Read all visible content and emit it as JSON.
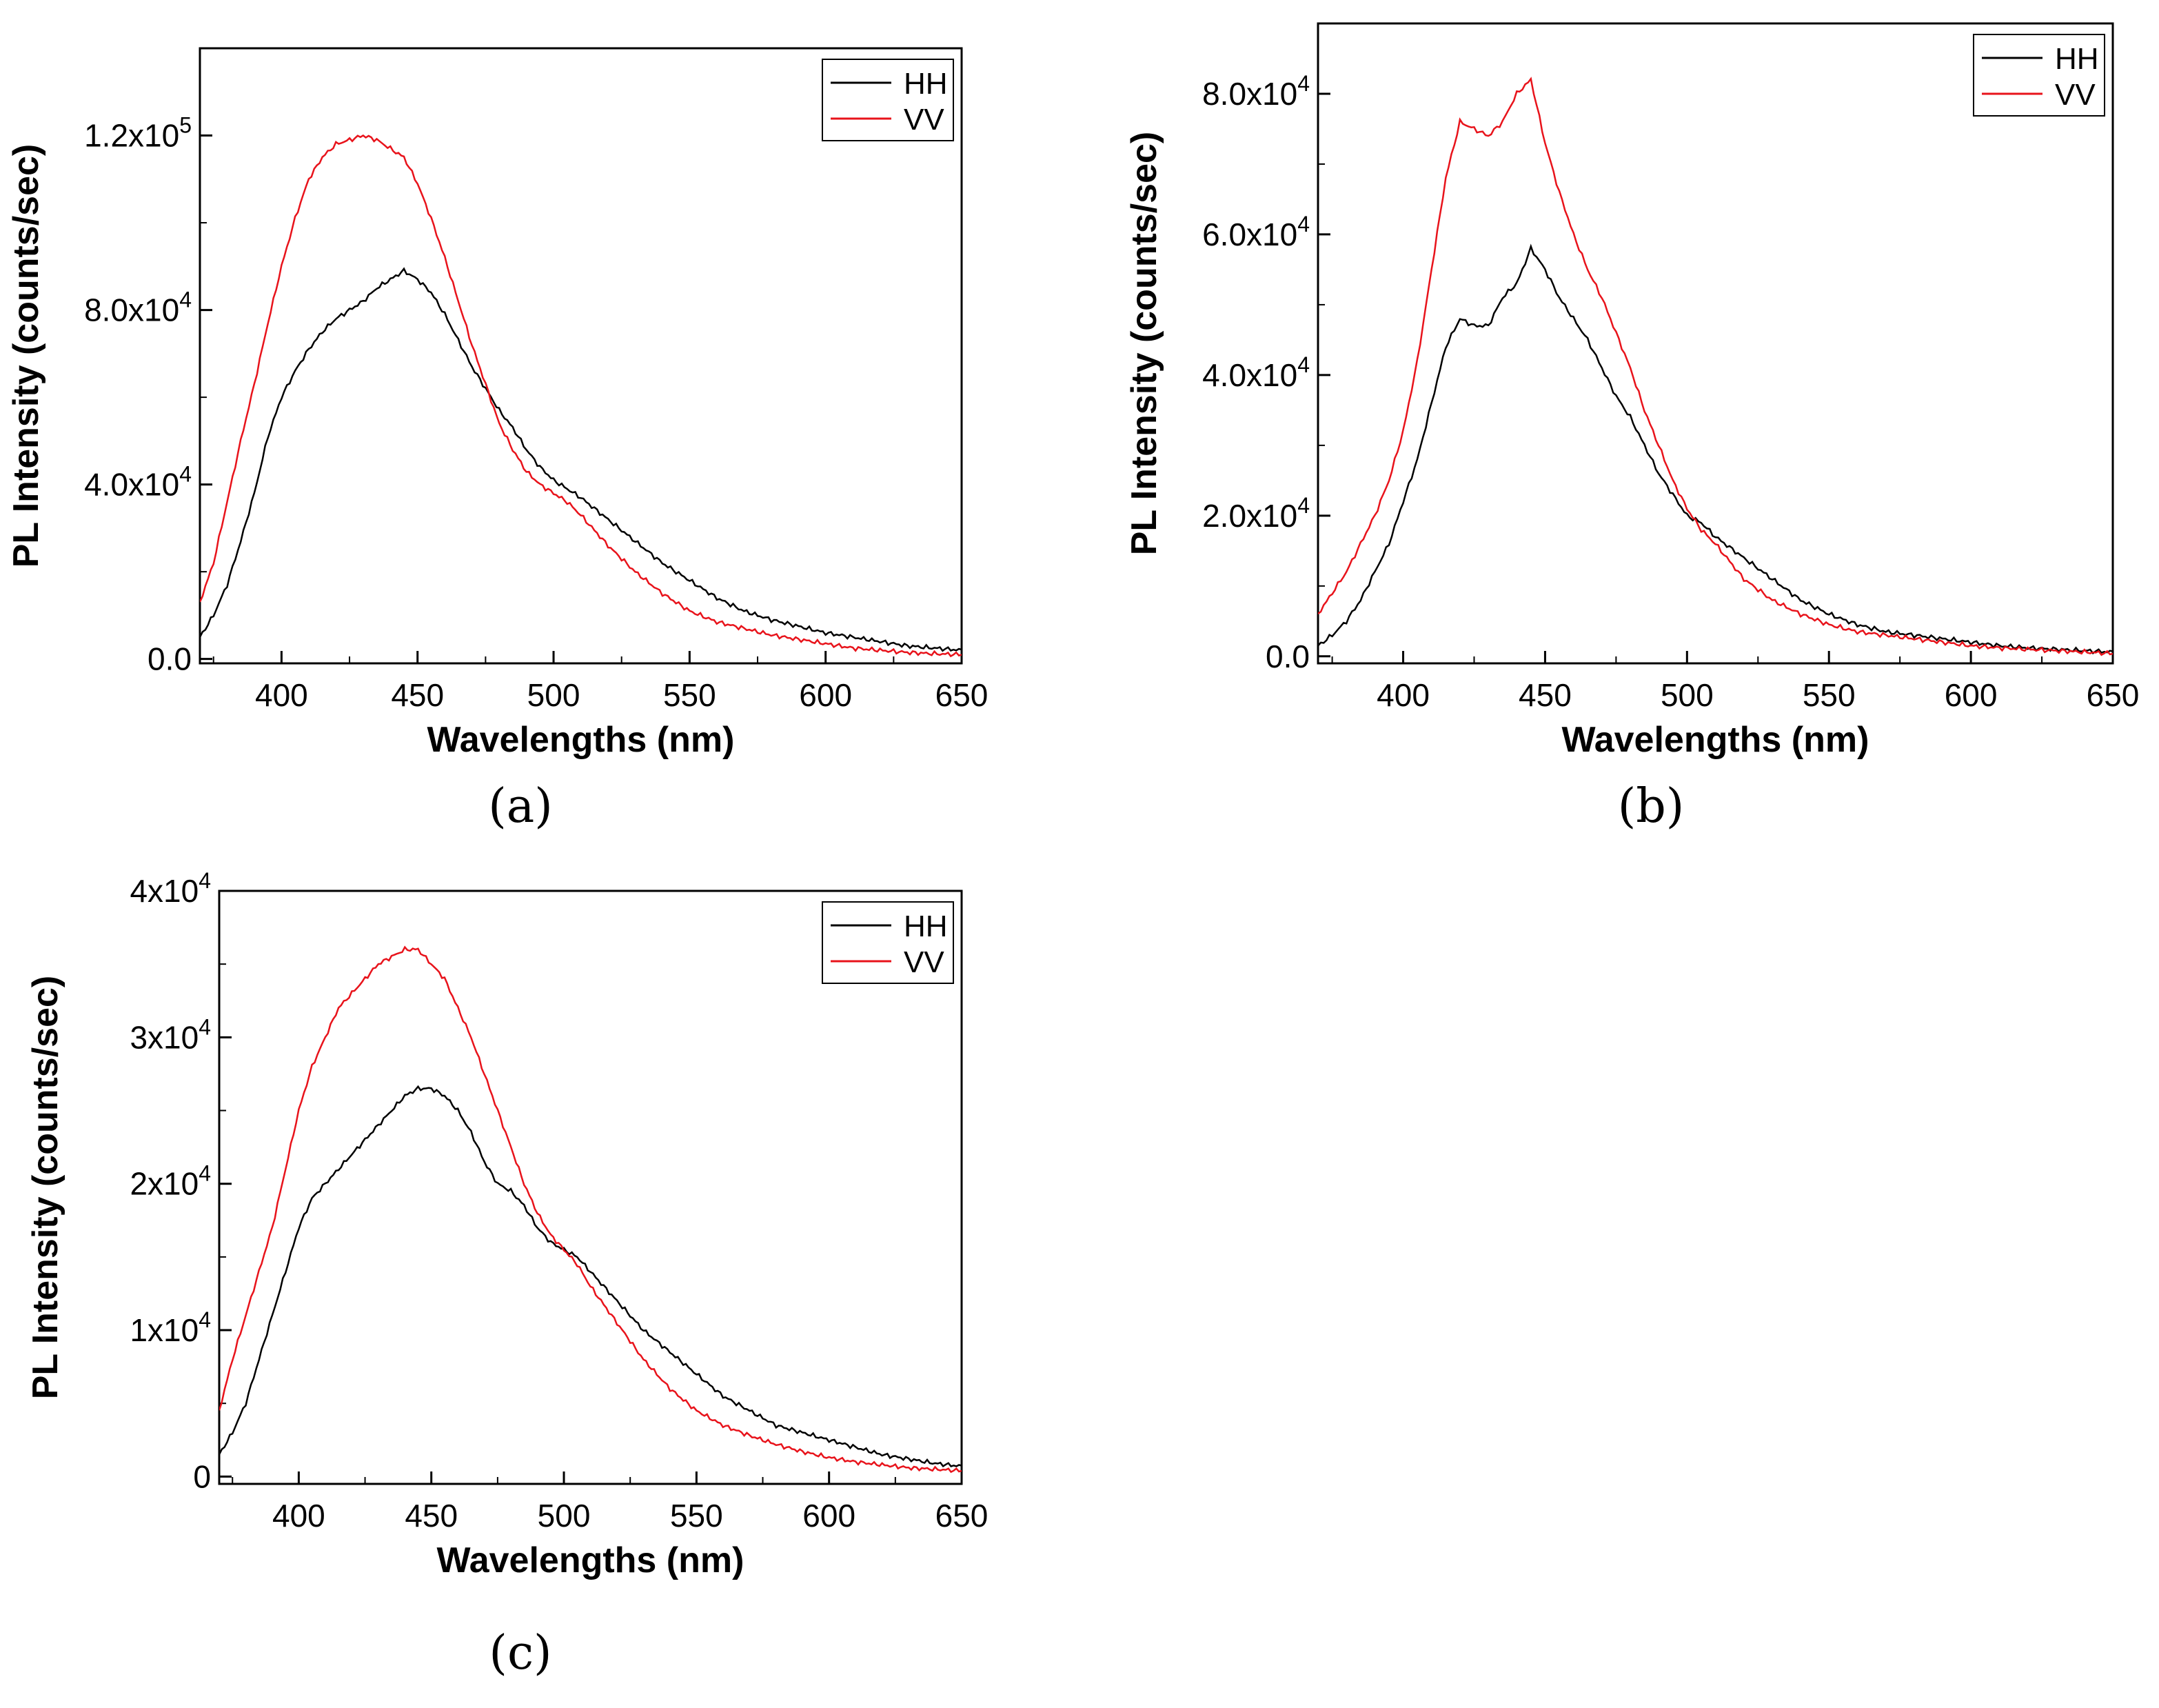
{
  "figure": {
    "panels": [
      {
        "label": "(a)",
        "xlabel": "Wavelengths (nm)",
        "ylabel": "PL Intensity (counts/sec)",
        "legend": [
          "HH",
          "VV"
        ]
      },
      {
        "label": "(b)",
        "xlabel": "Wavelengths (nm)",
        "ylabel": "PL Intensity (counts/sec)",
        "legend": [
          "HH",
          "VV"
        ]
      },
      {
        "label": "(c)",
        "xlabel": "Wavelengths (nm)",
        "ylabel": "PL Intensity (counts/sec)",
        "legend": [
          "HH",
          "VV"
        ]
      }
    ]
  },
  "colors": {
    "HH": "#000000",
    "VV": "#e8131b"
  },
  "chart_data": [
    {
      "type": "line",
      "panel": "(a)",
      "title": "",
      "xlabel": "Wavelengths (nm)",
      "ylabel": "PL Intensity (counts/sec)",
      "xlim": [
        370,
        650
      ],
      "ylim": [
        -1000,
        140000
      ],
      "xticks": [
        400,
        450,
        500,
        550,
        600,
        650
      ],
      "yticks": [
        0,
        40000,
        80000,
        120000
      ],
      "ytick_labels": [
        {
          "base": "0.0",
          "exp": ""
        },
        {
          "base": "4.0x10",
          "exp": "4"
        },
        {
          "base": "8.0x10",
          "exp": "4"
        },
        {
          "base": "1.2x10",
          "exp": "5"
        }
      ],
      "legend_position": "top-right",
      "x": [
        370,
        375,
        380,
        385,
        390,
        395,
        400,
        405,
        410,
        415,
        420,
        425,
        430,
        435,
        440,
        445,
        450,
        455,
        460,
        465,
        470,
        475,
        480,
        485,
        490,
        495,
        500,
        505,
        510,
        520,
        530,
        540,
        550,
        560,
        570,
        580,
        590,
        600,
        610,
        620,
        630,
        640,
        650
      ],
      "series": [
        {
          "name": "HH",
          "values": [
            5000,
            10000,
            17000,
            27000,
            38000,
            51000,
            60000,
            66000,
            71000,
            75000,
            78000,
            80000,
            82000,
            85000,
            87000,
            89000,
            87000,
            84000,
            79000,
            73000,
            67000,
            62000,
            57000,
            53000,
            48000,
            44000,
            41000,
            39000,
            37000,
            32000,
            27000,
            22000,
            18000,
            14000,
            11000,
            9000,
            7500,
            6000,
            5000,
            4000,
            3000,
            2500,
            2000
          ]
        },
        {
          "name": "VV",
          "values": [
            13000,
            22000,
            36000,
            50000,
            63000,
            77000,
            90000,
            101000,
            110000,
            115000,
            118000,
            119000,
            120000,
            119000,
            117000,
            115000,
            109000,
            101000,
            92000,
            82000,
            72000,
            63000,
            54000,
            48000,
            43000,
            40000,
            38000,
            36000,
            33000,
            26000,
            20000,
            15000,
            11000,
            8500,
            7000,
            5500,
            4500,
            3500,
            2500,
            2000,
            1500,
            1200,
            1000
          ]
        }
      ]
    },
    {
      "type": "line",
      "panel": "(b)",
      "title": "",
      "xlabel": "Wavelengths (nm)",
      "ylabel": "PL Intensity (counts/sec)",
      "xlim": [
        370,
        650
      ],
      "ylim": [
        -1000,
        90000
      ],
      "xticks": [
        400,
        450,
        500,
        550,
        600,
        650
      ],
      "yticks": [
        0,
        20000,
        40000,
        60000,
        80000
      ],
      "ytick_labels": [
        {
          "base": "0.0",
          "exp": ""
        },
        {
          "base": "2.0x10",
          "exp": "4"
        },
        {
          "base": "4.0x10",
          "exp": "4"
        },
        {
          "base": "6.0x10",
          "exp": "4"
        },
        {
          "base": "8.0x10",
          "exp": "4"
        }
      ],
      "legend_position": "top-right",
      "x": [
        370,
        375,
        380,
        385,
        390,
        395,
        400,
        405,
        410,
        415,
        420,
        425,
        430,
        435,
        440,
        445,
        450,
        455,
        460,
        465,
        470,
        475,
        480,
        485,
        490,
        495,
        500,
        505,
        510,
        520,
        530,
        540,
        550,
        560,
        570,
        580,
        590,
        600,
        610,
        620,
        630,
        640,
        650
      ],
      "series": [
        {
          "name": "HH",
          "values": [
            1500,
            3000,
            5000,
            8000,
            12000,
            16000,
            22000,
            28000,
            36000,
            44000,
            48000,
            47000,
            47000,
            51000,
            53000,
            58000,
            55000,
            51000,
            48000,
            45000,
            41000,
            37000,
            34000,
            30000,
            26000,
            23000,
            20000,
            19000,
            17000,
            14000,
            11000,
            8000,
            6000,
            4500,
            3500,
            3000,
            2500,
            2000,
            1500,
            1200,
            1000,
            800,
            600
          ]
        },
        {
          "name": "VV",
          "values": [
            6000,
            9000,
            12000,
            16000,
            20000,
            25000,
            32000,
            42000,
            55000,
            68000,
            76000,
            75000,
            74000,
            76000,
            80000,
            82000,
            73000,
            66000,
            60000,
            55000,
            51000,
            46000,
            41000,
            35000,
            30000,
            25000,
            21000,
            18000,
            16000,
            11000,
            8000,
            6000,
            4500,
            3500,
            3000,
            2500,
            2000,
            1500,
            1200,
            1000,
            800,
            600,
            400
          ]
        }
      ]
    },
    {
      "type": "line",
      "panel": "(c)",
      "title": "",
      "xlabel": "Wavelengths (nm)",
      "ylabel": "PL Intensity (counts/sec)",
      "xlim": [
        370,
        650
      ],
      "ylim": [
        -500,
        40000
      ],
      "xticks": [
        400,
        450,
        500,
        550,
        600,
        650
      ],
      "yticks": [
        0,
        10000,
        20000,
        30000,
        40000
      ],
      "ytick_labels": [
        {
          "base": "0",
          "exp": ""
        },
        {
          "base": "1x10",
          "exp": "4"
        },
        {
          "base": "2x10",
          "exp": "4"
        },
        {
          "base": "3x10",
          "exp": "4"
        },
        {
          "base": "4x10",
          "exp": "4"
        }
      ],
      "legend_position": "top-right",
      "x": [
        370,
        375,
        380,
        385,
        390,
        395,
        400,
        405,
        410,
        415,
        420,
        425,
        430,
        435,
        440,
        445,
        450,
        455,
        460,
        465,
        470,
        475,
        480,
        485,
        490,
        495,
        500,
        505,
        510,
        520,
        530,
        540,
        550,
        560,
        570,
        580,
        590,
        600,
        610,
        620,
        630,
        640,
        650
      ],
      "series": [
        {
          "name": "HH",
          "values": [
            1500,
            3000,
            5000,
            8000,
            11000,
            14000,
            17000,
            19000,
            20000,
            21000,
            22000,
            23000,
            24000,
            25000,
            26000,
            26500,
            26500,
            26000,
            25000,
            23500,
            21500,
            20000,
            19500,
            18500,
            17000,
            16000,
            15500,
            15000,
            14000,
            12000,
            10000,
            8500,
            7000,
            5500,
            4500,
            3500,
            3000,
            2500,
            2000,
            1500,
            1200,
            900,
            700
          ]
        },
        {
          "name": "VV",
          "values": [
            4500,
            8000,
            11000,
            14000,
            17000,
            21000,
            25000,
            28000,
            30000,
            32000,
            33000,
            34000,
            35000,
            35500,
            36000,
            36000,
            35000,
            34000,
            32000,
            30000,
            27500,
            25000,
            22500,
            20000,
            18000,
            16500,
            15500,
            14500,
            13000,
            10500,
            8000,
            6000,
            4500,
            3500,
            2800,
            2200,
            1700,
            1300,
            1000,
            800,
            600,
            500,
            400
          ]
        }
      ]
    }
  ]
}
